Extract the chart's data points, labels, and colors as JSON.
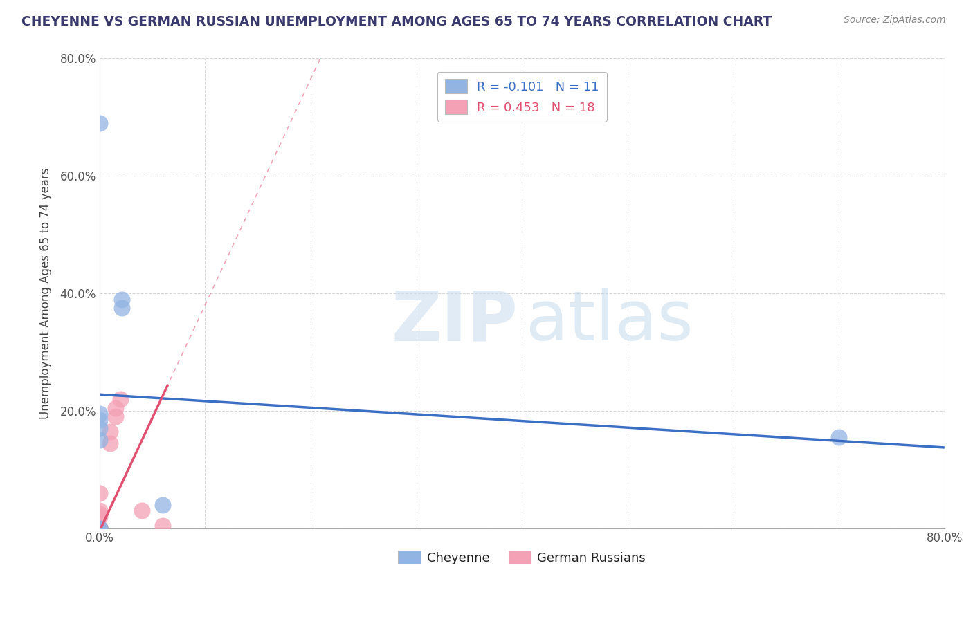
{
  "title": "CHEYENNE VS GERMAN RUSSIAN UNEMPLOYMENT AMONG AGES 65 TO 74 YEARS CORRELATION CHART",
  "source": "Source: ZipAtlas.com",
  "ylabel": "Unemployment Among Ages 65 to 74 years",
  "xlim": [
    0,
    0.8
  ],
  "ylim": [
    0,
    0.8
  ],
  "xticks": [
    0.0,
    0.1,
    0.2,
    0.3,
    0.4,
    0.5,
    0.6,
    0.7,
    0.8
  ],
  "yticks": [
    0.0,
    0.2,
    0.4,
    0.6,
    0.8
  ],
  "cheyenne_color": "#92b4e3",
  "cheyenne_line_color": "#3b6fc4",
  "german_russian_color": "#f4a0b5",
  "german_russian_line_color": "#e05070",
  "cheyenne_R": -0.101,
  "cheyenne_N": 11,
  "german_russian_R": 0.453,
  "german_russian_N": 18,
  "cheyenne_x": [
    0.0,
    0.0,
    0.0,
    0.0,
    0.0,
    0.0,
    0.021,
    0.021,
    0.06,
    0.7,
    0.0
  ],
  "cheyenne_y": [
    0.0,
    0.0,
    0.15,
    0.17,
    0.185,
    0.195,
    0.39,
    0.375,
    0.04,
    0.155,
    0.69
  ],
  "german_russian_x": [
    0.0,
    0.0,
    0.0,
    0.0,
    0.0,
    0.0,
    0.0,
    0.0,
    0.0,
    0.0,
    0.0,
    0.01,
    0.01,
    0.015,
    0.015,
    0.02,
    0.04,
    0.06
  ],
  "german_russian_y": [
    0.0,
    0.0,
    0.0,
    0.0,
    0.0,
    0.0,
    0.0,
    0.02,
    0.025,
    0.03,
    0.06,
    0.145,
    0.165,
    0.19,
    0.205,
    0.22,
    0.03,
    0.005
  ],
  "cheyenne_trend": [
    0.228,
    -0.113
  ],
  "german_russian_trend": [
    -0.005,
    3.85
  ],
  "watermark_zip": "ZIP",
  "watermark_atlas": "atlas",
  "legend_label_cheyenne": "R = -0.101   N = 11",
  "legend_label_german": "R = 0.453   N = 18",
  "bottom_legend_cheyenne": "Cheyenne",
  "bottom_legend_german": "German Russians",
  "title_color": "#3a3a6e",
  "source_color": "#888888",
  "grid_color": "#cccccc",
  "spine_color": "#aaaaaa",
  "tick_color": "#555555"
}
